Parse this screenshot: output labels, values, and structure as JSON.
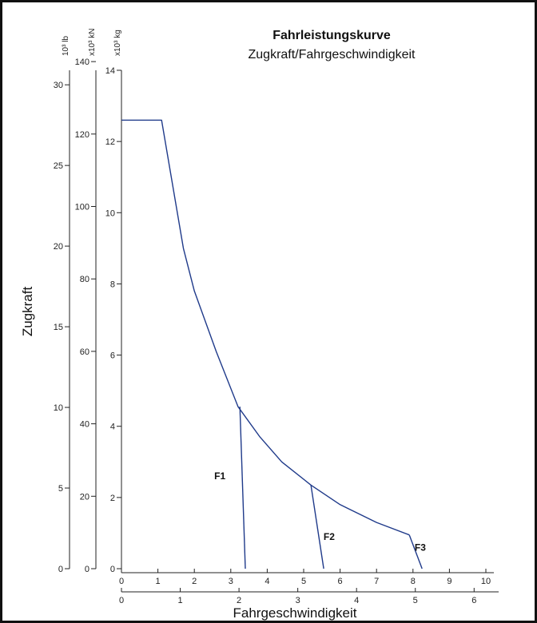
{
  "chart_data": {
    "type": "line",
    "title": "Fahrleistungskurve",
    "subtitle": "Zugkraft/Fahrgeschwindigkeit",
    "ylabel": "Zugkraft",
    "xlabel": "Fahrgeschwindigkeit",
    "y_axes": [
      {
        "unit": "10³ lb",
        "ticks": [
          "0",
          "5",
          "10",
          "15",
          "20",
          "25",
          "30"
        ],
        "ylim": [
          0,
          30.9
        ]
      },
      {
        "unit": "x10³ kN",
        "ticks": [
          "0",
          "20",
          "40",
          "60",
          "80",
          "100",
          "120",
          "140"
        ],
        "ylim": [
          0,
          137.6
        ]
      },
      {
        "unit": "x10³ kg",
        "ticks": [
          "0",
          "2",
          "4",
          "6",
          "8",
          "10",
          "12",
          "14"
        ],
        "ylim": [
          0,
          14
        ]
      }
    ],
    "x_axes": [
      {
        "ticks": [
          "0",
          "1",
          "2",
          "3",
          "4",
          "5",
          "6",
          "7",
          "8",
          "9",
          "10"
        ],
        "xlim": [
          0,
          10
        ]
      },
      {
        "ticks": [
          "0",
          "1",
          "2",
          "3",
          "4",
          "5",
          "6"
        ],
        "xlim": [
          0,
          6.2
        ]
      }
    ],
    "series": [
      {
        "x": [
          0,
          1.1,
          1.7,
          2.0,
          2.6,
          3.2,
          3.8,
          4.4,
          5.2,
          6.0,
          7.0,
          7.9
        ],
        "y": [
          12.6,
          12.6,
          9.0,
          7.8,
          6.1,
          4.55,
          3.7,
          3.0,
          2.35,
          1.8,
          1.3,
          0.95
        ]
      },
      {
        "name": "F1",
        "x": [
          3.25,
          3.4
        ],
        "y": [
          4.55,
          0
        ]
      },
      {
        "name": "F2",
        "x": [
          5.2,
          5.55
        ],
        "y": [
          2.35,
          0
        ]
      },
      {
        "name": "F3",
        "x": [
          7.9,
          8.25
        ],
        "y": [
          0.95,
          0
        ]
      }
    ],
    "series_labels": [
      {
        "text": "F1",
        "x": 2.7,
        "y": 2.6
      },
      {
        "text": "F2",
        "x": 5.7,
        "y": 0.9
      },
      {
        "text": "F3",
        "x": 8.2,
        "y": 0.6
      }
    ],
    "line_color": "#1f3a8a",
    "axis_color": "#222222",
    "grid": false
  }
}
